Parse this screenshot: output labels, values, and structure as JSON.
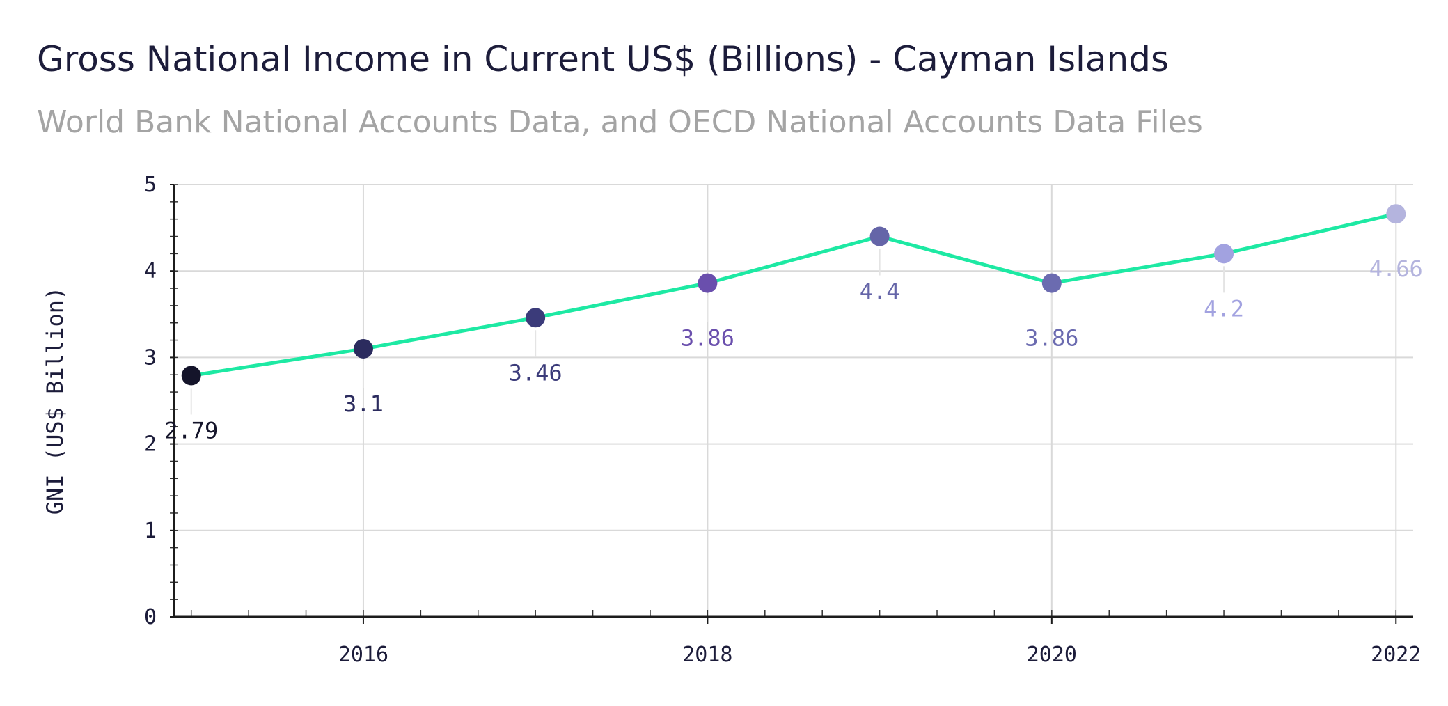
{
  "chart_data": {
    "type": "line",
    "title": "Gross National Income in Current US$ (Billions) - Cayman Islands",
    "subtitle": "World Bank National Accounts Data, and OECD National Accounts Data Files",
    "xlabel": "",
    "ylabel": "GNI (US$ Billion)",
    "x": [
      2015,
      2016,
      2017,
      2018,
      2019,
      2020,
      2021,
      2022
    ],
    "values": [
      2.79,
      3.1,
      3.46,
      3.86,
      4.4,
      3.86,
      4.2,
      4.66
    ],
    "labels": [
      "2.79",
      "3.1",
      "3.46",
      "3.86",
      "4.4",
      "3.86",
      "4.2",
      "4.66"
    ],
    "xlim": [
      2014.9,
      2022.1
    ],
    "ylim": [
      0,
      5
    ],
    "xticks": [
      "2016",
      "2018",
      "2020",
      "2022"
    ],
    "yticks": [
      "0",
      "1",
      "2",
      "3",
      "4",
      "5"
    ],
    "grid": true,
    "line_color": "#1de9a3",
    "marker_colors": [
      "#14142a",
      "#2b2b5e",
      "#3b3b7a",
      "#6a4fad",
      "#6565a8",
      "#6b6bb0",
      "#a2a2e0",
      "#b4b4de"
    ]
  }
}
